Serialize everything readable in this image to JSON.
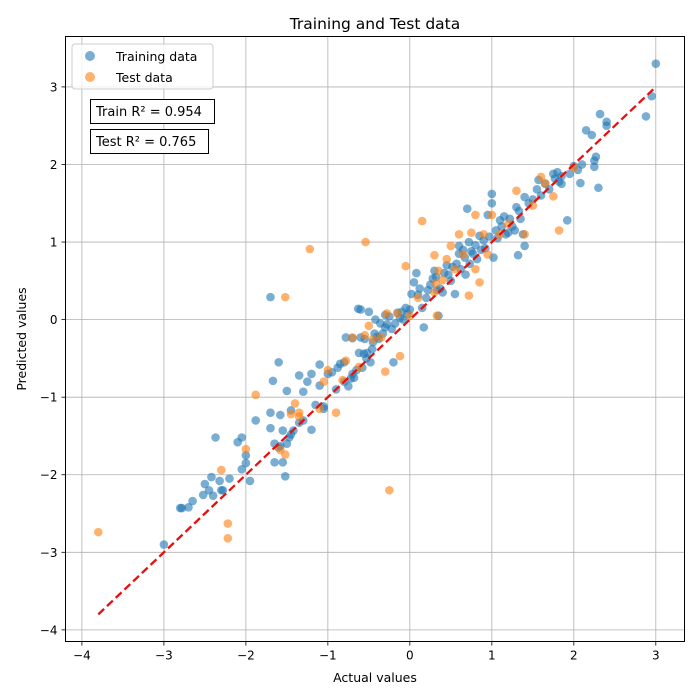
{
  "chart_data": {
    "type": "scatter",
    "title": "Training and Test data",
    "xlabel": "Actual values",
    "ylabel": "Predicted values",
    "xlim": [
      -4.2,
      3.35
    ],
    "ylim": [
      -4.15,
      3.65
    ],
    "xticks": [
      -4,
      -3,
      -2,
      -1,
      0,
      1,
      2,
      3
    ],
    "yticks": [
      -4,
      -3,
      -2,
      -1,
      0,
      1,
      2,
      3
    ],
    "tick_labels": {
      "x": [
        "−4",
        "−3",
        "−2",
        "−1",
        "0",
        "1",
        "2",
        "3"
      ],
      "y": [
        "−4",
        "−3",
        "−2",
        "−1",
        "0",
        "1",
        "2",
        "3"
      ]
    },
    "grid": true,
    "legend_position": "upper-left",
    "annotations": [
      "Train R² = 0.954",
      "Test R² = 0.765"
    ],
    "reference_line": {
      "x": [
        -3.8,
        3.0
      ],
      "y": [
        -3.8,
        3.0
      ],
      "color": "#e8100e",
      "style": "dashed"
    },
    "series": [
      {
        "name": "Training data",
        "color": "#1f77b4",
        "points": [
          [
            -3.0,
            -2.9
          ],
          [
            -2.8,
            -2.43
          ],
          [
            -2.78,
            -2.43
          ],
          [
            -2.7,
            -2.42
          ],
          [
            -2.65,
            -2.34
          ],
          [
            -2.52,
            -2.26
          ],
          [
            -2.5,
            -2.12
          ],
          [
            -2.45,
            -2.2
          ],
          [
            -2.42,
            -2.03
          ],
          [
            -2.4,
            -2.27
          ],
          [
            -2.37,
            -1.52
          ],
          [
            -2.32,
            -2.08
          ],
          [
            -2.3,
            -2.2
          ],
          [
            -2.28,
            -2.2
          ],
          [
            -2.2,
            -2.05
          ],
          [
            -2.1,
            -1.58
          ],
          [
            -2.05,
            -1.52
          ],
          [
            -2.05,
            -1.93
          ],
          [
            -2.0,
            -1.75
          ],
          [
            -2.0,
            -1.85
          ],
          [
            -1.95,
            -2.08
          ],
          [
            -1.88,
            -1.3
          ],
          [
            -1.7,
            0.29
          ],
          [
            -1.7,
            -1.4
          ],
          [
            -1.7,
            -1.2
          ],
          [
            -1.67,
            -0.79
          ],
          [
            -1.65,
            -1.6
          ],
          [
            -1.65,
            -1.84
          ],
          [
            -1.6,
            -0.55
          ],
          [
            -1.6,
            -1.65
          ],
          [
            -1.58,
            -1.63
          ],
          [
            -1.58,
            -1.23
          ],
          [
            -1.55,
            -1.84
          ],
          [
            -1.55,
            -1.43
          ],
          [
            -1.52,
            -2.02
          ],
          [
            -1.5,
            -0.92
          ],
          [
            -1.5,
            -1.6
          ],
          [
            -1.47,
            -1.52
          ],
          [
            -1.45,
            -1.17
          ],
          [
            -1.45,
            -1.48
          ],
          [
            -1.42,
            -1.43
          ],
          [
            -1.35,
            -0.72
          ],
          [
            -1.35,
            -1.33
          ],
          [
            -1.3,
            -0.93
          ],
          [
            -1.3,
            -1.3
          ],
          [
            -1.25,
            -0.8
          ],
          [
            -1.2,
            -0.7
          ],
          [
            -1.2,
            -1.42
          ],
          [
            -1.15,
            -1.1
          ],
          [
            -1.1,
            -0.58
          ],
          [
            -1.1,
            -0.85
          ],
          [
            -1.05,
            -1.12
          ],
          [
            -1.05,
            -1.15
          ],
          [
            -1.0,
            -0.7
          ],
          [
            -0.95,
            -0.68
          ],
          [
            -0.9,
            -0.9
          ],
          [
            -0.88,
            -0.62
          ],
          [
            -0.85,
            -0.57
          ],
          [
            -0.8,
            -0.8
          ],
          [
            -0.8,
            -0.55
          ],
          [
            -0.78,
            -0.23
          ],
          [
            -0.75,
            -0.86
          ],
          [
            -0.72,
            -0.76
          ],
          [
            -0.7,
            -0.7
          ],
          [
            -0.7,
            -0.24
          ],
          [
            -0.68,
            -0.75
          ],
          [
            -0.65,
            -0.65
          ],
          [
            -0.63,
            0.14
          ],
          [
            -0.62,
            -0.43
          ],
          [
            -0.6,
            -0.23
          ],
          [
            -0.6,
            0.13
          ],
          [
            -0.58,
            -0.62
          ],
          [
            -0.56,
            -0.44
          ],
          [
            -0.55,
            -0.25
          ],
          [
            -0.53,
            -0.5
          ],
          [
            -0.52,
            -0.43
          ],
          [
            -0.5,
            0.1
          ],
          [
            -0.48,
            -0.55
          ],
          [
            -0.46,
            -0.38
          ],
          [
            -0.45,
            -0.29
          ],
          [
            -0.43,
            -0.18
          ],
          [
            -0.42,
            0.0
          ],
          [
            -0.4,
            -0.22
          ],
          [
            -0.38,
            -0.25
          ],
          [
            -0.36,
            -0.05
          ],
          [
            -0.33,
            -0.18
          ],
          [
            -0.3,
            0.06
          ],
          [
            -0.3,
            -0.1
          ],
          [
            -0.28,
            -0.06
          ],
          [
            -0.25,
            0.04
          ],
          [
            -0.22,
            -0.12
          ],
          [
            -0.2,
            -0.55
          ],
          [
            -0.18,
            -0.05
          ],
          [
            -0.15,
            0.09
          ],
          [
            -0.12,
            0.02
          ],
          [
            -0.1,
            0.1
          ],
          [
            -0.08,
            0.0
          ],
          [
            -0.05,
            0.15
          ],
          [
            -0.03,
            0.07
          ],
          [
            0.0,
            0.13
          ],
          [
            0.02,
            0.33
          ],
          [
            0.05,
            0.48
          ],
          [
            0.08,
            0.6
          ],
          [
            0.1,
            0.32
          ],
          [
            0.12,
            0.4
          ],
          [
            0.15,
            0.15
          ],
          [
            0.17,
            -0.1
          ],
          [
            0.2,
            0.28
          ],
          [
            0.22,
            0.38
          ],
          [
            0.25,
            0.45
          ],
          [
            0.28,
            0.53
          ],
          [
            0.3,
            0.63
          ],
          [
            0.32,
            0.55
          ],
          [
            0.33,
            0.38
          ],
          [
            0.35,
            0.05
          ],
          [
            0.37,
            0.4
          ],
          [
            0.4,
            0.35
          ],
          [
            0.42,
            0.6
          ],
          [
            0.45,
            0.7
          ],
          [
            0.47,
            0.58
          ],
          [
            0.5,
            0.5
          ],
          [
            0.52,
            0.68
          ],
          [
            0.55,
            0.33
          ],
          [
            0.57,
            0.72
          ],
          [
            0.6,
            0.85
          ],
          [
            0.6,
            0.95
          ],
          [
            0.62,
            0.65
          ],
          [
            0.65,
            0.9
          ],
          [
            0.67,
            0.8
          ],
          [
            0.68,
            0.58
          ],
          [
            0.7,
            1.43
          ],
          [
            0.72,
            1.0
          ],
          [
            0.73,
            0.72
          ],
          [
            0.75,
            0.88
          ],
          [
            0.77,
            0.85
          ],
          [
            0.8,
            0.96
          ],
          [
            0.82,
            0.78
          ],
          [
            0.85,
            1.08
          ],
          [
            0.87,
            0.9
          ],
          [
            0.9,
            1.02
          ],
          [
            0.92,
            0.92
          ],
          [
            0.95,
            1.35
          ],
          [
            0.97,
            1.07
          ],
          [
            1.0,
            1.62
          ],
          [
            1.0,
            1.5
          ],
          [
            1.02,
            0.8
          ],
          [
            1.05,
            1.15
          ],
          [
            1.07,
            1.05
          ],
          [
            1.1,
            1.28
          ],
          [
            1.12,
            1.2
          ],
          [
            1.15,
            1.33
          ],
          [
            1.17,
            1.1
          ],
          [
            1.2,
            1.12
          ],
          [
            1.22,
            1.3
          ],
          [
            1.25,
            1.2
          ],
          [
            1.28,
            1.15
          ],
          [
            1.3,
            1.45
          ],
          [
            1.32,
            0.83
          ],
          [
            1.33,
            1.4
          ],
          [
            1.35,
            1.3
          ],
          [
            1.38,
            1.1
          ],
          [
            1.4,
            1.58
          ],
          [
            1.4,
            0.95
          ],
          [
            1.45,
            1.5
          ],
          [
            1.5,
            1.55
          ],
          [
            1.55,
            1.68
          ],
          [
            1.57,
            1.8
          ],
          [
            1.6,
            1.6
          ],
          [
            1.65,
            1.75
          ],
          [
            1.7,
            1.68
          ],
          [
            1.75,
            1.88
          ],
          [
            1.77,
            1.82
          ],
          [
            1.8,
            1.9
          ],
          [
            1.82,
            1.78
          ],
          [
            1.85,
            1.85
          ],
          [
            1.85,
            1.75
          ],
          [
            1.92,
            1.28
          ],
          [
            1.95,
            1.88
          ],
          [
            2.0,
            1.98
          ],
          [
            2.05,
            1.93
          ],
          [
            2.08,
            1.76
          ],
          [
            2.1,
            2.0
          ],
          [
            2.15,
            2.44
          ],
          [
            2.22,
            2.38
          ],
          [
            2.25,
            2.05
          ],
          [
            2.25,
            1.97
          ],
          [
            2.27,
            2.1
          ],
          [
            2.3,
            1.7
          ],
          [
            2.32,
            2.65
          ],
          [
            2.4,
            2.55
          ],
          [
            2.4,
            2.5
          ],
          [
            2.88,
            2.62
          ],
          [
            2.95,
            2.88
          ],
          [
            3.0,
            3.3
          ]
        ]
      },
      {
        "name": "Test data",
        "color": "#ff7f0e",
        "points": [
          [
            -3.8,
            -2.74
          ],
          [
            -2.3,
            -1.94
          ],
          [
            -2.22,
            -2.82
          ],
          [
            -2.22,
            -2.63
          ],
          [
            -2.0,
            -1.67
          ],
          [
            -1.88,
            -0.97
          ],
          [
            -1.58,
            -1.68
          ],
          [
            -1.52,
            -1.74
          ],
          [
            -1.52,
            0.29
          ],
          [
            -1.45,
            -1.22
          ],
          [
            -1.4,
            -1.08
          ],
          [
            -1.35,
            -1.25
          ],
          [
            -1.35,
            -1.2
          ],
          [
            -1.22,
            0.91
          ],
          [
            -1.1,
            -1.15
          ],
          [
            -1.05,
            -0.8
          ],
          [
            -1.0,
            -0.65
          ],
          [
            -0.9,
            -1.2
          ],
          [
            -0.82,
            -0.78
          ],
          [
            -0.78,
            -0.53
          ],
          [
            -0.7,
            -0.23
          ],
          [
            -0.62,
            -0.61
          ],
          [
            -0.55,
            -0.2
          ],
          [
            -0.54,
            1.0
          ],
          [
            -0.5,
            -0.08
          ],
          [
            -0.45,
            -0.25
          ],
          [
            -0.35,
            -0.23
          ],
          [
            -0.3,
            -0.67
          ],
          [
            -0.28,
            0.08
          ],
          [
            -0.25,
            -2.2
          ],
          [
            -0.15,
            0.08
          ],
          [
            -0.12,
            -0.47
          ],
          [
            -0.05,
            0.69
          ],
          [
            0.0,
            0.05
          ],
          [
            0.1,
            0.28
          ],
          [
            0.15,
            1.27
          ],
          [
            0.3,
            0.35
          ],
          [
            0.3,
            0.83
          ],
          [
            0.32,
            0.47
          ],
          [
            0.33,
            0.05
          ],
          [
            0.35,
            0.63
          ],
          [
            0.4,
            0.51
          ],
          [
            0.45,
            0.78
          ],
          [
            0.5,
            0.95
          ],
          [
            0.55,
            0.65
          ],
          [
            0.6,
            1.1
          ],
          [
            0.65,
            0.84
          ],
          [
            0.72,
            0.31
          ],
          [
            0.75,
            1.12
          ],
          [
            0.8,
            1.35
          ],
          [
            0.8,
            0.65
          ],
          [
            0.85,
            0.48
          ],
          [
            0.9,
            1.1
          ],
          [
            0.95,
            0.84
          ],
          [
            1.0,
            1.35
          ],
          [
            1.1,
            1.1
          ],
          [
            1.2,
            1.23
          ],
          [
            1.3,
            1.66
          ],
          [
            1.4,
            1.1
          ],
          [
            1.5,
            1.47
          ],
          [
            1.6,
            1.84
          ],
          [
            1.65,
            1.76
          ],
          [
            1.75,
            1.59
          ],
          [
            1.82,
            1.15
          ],
          [
            2.0,
            1.96
          ]
        ]
      }
    ]
  }
}
